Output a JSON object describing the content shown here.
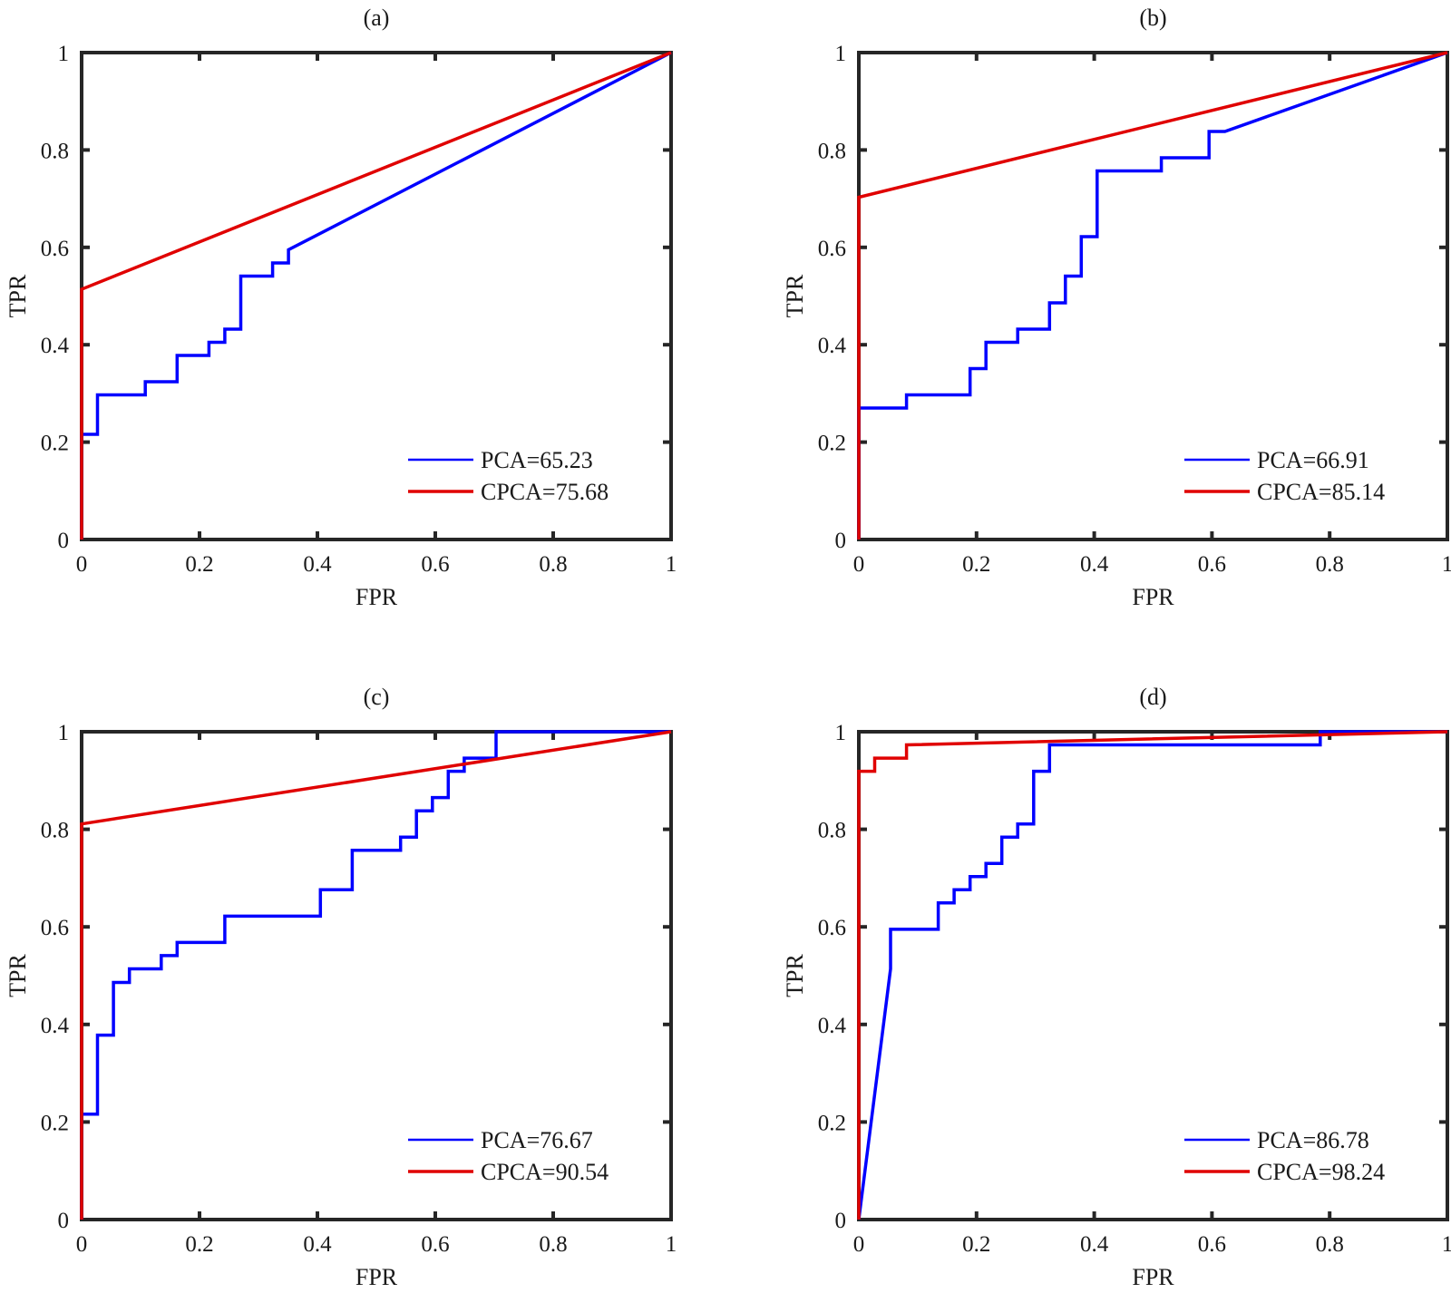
{
  "figure": {
    "panel_count": 4
  },
  "chart_data": [
    {
      "type": "line",
      "title": "(a)",
      "xlabel": "FPR",
      "ylabel": "TPR",
      "xlim": [
        0,
        1
      ],
      "ylim": [
        0,
        1
      ],
      "xticks": [
        "0",
        "0.2",
        "0.4",
        "0.6",
        "0.8",
        "1"
      ],
      "yticks": [
        "0",
        "0.2",
        "0.4",
        "0.6",
        "0.8",
        "1"
      ],
      "legend_position": "bottom-right",
      "grid": false,
      "series": [
        {
          "name": "PCA=65.23",
          "color": "#0000ff",
          "x": [
            0,
            0,
            0.027,
            0.027,
            0.108,
            0.108,
            0.162,
            0.162,
            0.216,
            0.216,
            0.243,
            0.243,
            0.27,
            0.27,
            0.324,
            0.324,
            0.351,
            0.351,
            1
          ],
          "y": [
            0,
            0.216,
            0.216,
            0.297,
            0.297,
            0.324,
            0.324,
            0.378,
            0.378,
            0.405,
            0.405,
            0.432,
            0.432,
            0.541,
            0.541,
            0.568,
            0.568,
            0.595,
            1
          ]
        },
        {
          "name": "CPCA=75.68",
          "color": "#e00000",
          "x": [
            0,
            0,
            1
          ],
          "y": [
            0,
            0.514,
            1
          ]
        }
      ]
    },
    {
      "type": "line",
      "title": "(b)",
      "xlabel": "FPR",
      "ylabel": "TPR",
      "xlim": [
        0,
        1
      ],
      "ylim": [
        0,
        1
      ],
      "xticks": [
        "0",
        "0.2",
        "0.4",
        "0.6",
        "0.8",
        "1"
      ],
      "yticks": [
        "0",
        "0.2",
        "0.4",
        "0.6",
        "0.8",
        "1"
      ],
      "legend_position": "bottom-right",
      "grid": false,
      "series": [
        {
          "name": "PCA=66.91",
          "color": "#0000ff",
          "x": [
            0,
            0,
            0.081,
            0.081,
            0.189,
            0.189,
            0.216,
            0.216,
            0.27,
            0.27,
            0.324,
            0.324,
            0.351,
            0.351,
            0.378,
            0.378,
            0.405,
            0.405,
            0.514,
            0.514,
            0.595,
            0.595,
            0.622,
            1
          ],
          "y": [
            0,
            0.27,
            0.27,
            0.297,
            0.297,
            0.351,
            0.351,
            0.405,
            0.405,
            0.432,
            0.432,
            0.486,
            0.486,
            0.541,
            0.541,
            0.622,
            0.622,
            0.757,
            0.757,
            0.784,
            0.784,
            0.838,
            0.838,
            1
          ]
        },
        {
          "name": "CPCA=85.14",
          "color": "#e00000",
          "x": [
            0,
            0,
            1
          ],
          "y": [
            0,
            0.703,
            1
          ]
        }
      ]
    },
    {
      "type": "line",
      "title": "(c)",
      "xlabel": "FPR",
      "ylabel": "TPR",
      "xlim": [
        0,
        1
      ],
      "ylim": [
        0,
        1
      ],
      "xticks": [
        "0",
        "0.2",
        "0.4",
        "0.6",
        "0.8",
        "1"
      ],
      "yticks": [
        "0",
        "0.2",
        "0.4",
        "0.6",
        "0.8",
        "1"
      ],
      "legend_position": "bottom-right",
      "grid": false,
      "series": [
        {
          "name": "PCA=76.67",
          "color": "#0000ff",
          "x": [
            0,
            0,
            0.027,
            0.027,
            0.054,
            0.054,
            0.081,
            0.081,
            0.135,
            0.135,
            0.162,
            0.162,
            0.243,
            0.243,
            0.405,
            0.405,
            0.459,
            0.459,
            0.541,
            0.541,
            0.568,
            0.568,
            0.595,
            0.595,
            0.622,
            0.622,
            0.649,
            0.649,
            0.703,
            0.703,
            1
          ],
          "y": [
            0,
            0.216,
            0.216,
            0.378,
            0.378,
            0.486,
            0.486,
            0.514,
            0.514,
            0.541,
            0.541,
            0.568,
            0.568,
            0.622,
            0.622,
            0.676,
            0.676,
            0.757,
            0.757,
            0.784,
            0.784,
            0.838,
            0.838,
            0.865,
            0.865,
            0.919,
            0.919,
            0.946,
            0.946,
            1,
            1
          ]
        },
        {
          "name": "CPCA=90.54",
          "color": "#e00000",
          "x": [
            0,
            0,
            1
          ],
          "y": [
            0,
            0.811,
            1
          ]
        }
      ]
    },
    {
      "type": "line",
      "title": "(d)",
      "xlabel": "FPR",
      "ylabel": "TPR",
      "xlim": [
        0,
        1
      ],
      "ylim": [
        0,
        1
      ],
      "xticks": [
        "0",
        "0.2",
        "0.4",
        "0.6",
        "0.8",
        "1"
      ],
      "yticks": [
        "0",
        "0.2",
        "0.4",
        "0.6",
        "0.8",
        "1"
      ],
      "legend_position": "bottom-right",
      "grid": false,
      "series": [
        {
          "name": "PCA=86.78",
          "color": "#0000ff",
          "x": [
            0,
            0.054,
            0.054,
            0.135,
            0.135,
            0.162,
            0.162,
            0.189,
            0.189,
            0.216,
            0.216,
            0.243,
            0.243,
            0.27,
            0.27,
            0.297,
            0.297,
            0.324,
            0.324,
            0.784,
            0.784,
            1
          ],
          "y": [
            0,
            0.514,
            0.595,
            0.595,
            0.649,
            0.649,
            0.676,
            0.676,
            0.703,
            0.703,
            0.73,
            0.73,
            0.784,
            0.784,
            0.811,
            0.811,
            0.919,
            0.919,
            0.973,
            0.973,
            1,
            1
          ]
        },
        {
          "name": "CPCA=98.24",
          "color": "#e00000",
          "x": [
            0,
            0,
            0.027,
            0.027,
            0.081,
            0.081,
            1
          ],
          "y": [
            0,
            0.919,
            0.919,
            0.946,
            0.946,
            0.973,
            1
          ]
        }
      ]
    }
  ]
}
